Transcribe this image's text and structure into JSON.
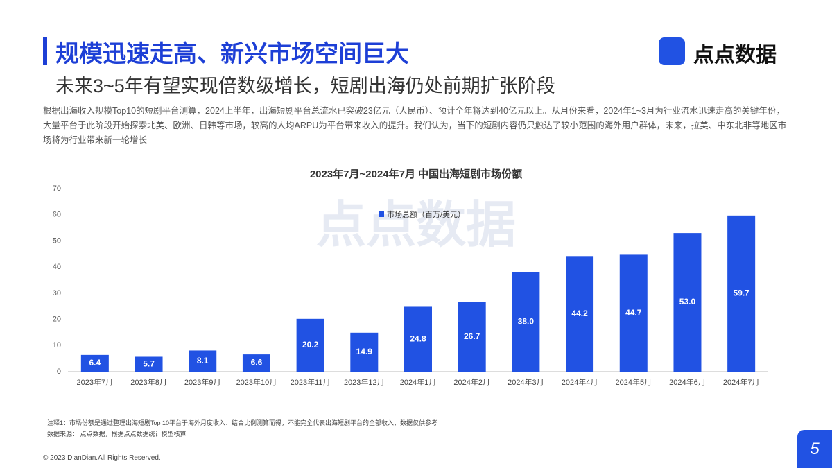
{
  "header": {
    "title": "规模迅速走高、新兴市场空间巨大",
    "subtitle": "未来3~5年有望实现倍数级增长，短剧出海仍处前期扩张阶段",
    "logo": "点点数据"
  },
  "paragraph": "根据出海收入规模Top10的短剧平台测算，2024上半年，出海短剧平台总流水已突破23亿元（人民币）、预计全年将达到40亿元以上。从月份来看，2024年1~3月为行业流水迅速走高的关键年份，大量平台于此阶段开始探索北美、欧洲、日韩等市场，较高的人均ARPU为平台带来收入的提升。我们认为，当下的短剧内容仍只触达了较小范围的海外用户群体，未来，拉美、中东北非等地区市场将为行业带来新一轮增长",
  "chart_data": {
    "type": "bar",
    "title": "2023年7月~2024年7月 中国出海短剧市场份额",
    "watermark": "点点数据",
    "categories": [
      "2023年7月",
      "2023年8月",
      "2023年9月",
      "2023年10月",
      "2023年11月",
      "2023年12月",
      "2024年1月",
      "2024年2月",
      "2024年3月",
      "2024年4月",
      "2024年5月",
      "2024年6月",
      "2024年7月"
    ],
    "series": [
      {
        "name": "市场总额（百万/美元）",
        "color": "#2152e3",
        "values": [
          6.4,
          5.7,
          8.1,
          6.6,
          20.2,
          14.9,
          24.8,
          26.7,
          38,
          44.2,
          44.7,
          53,
          59.7
        ],
        "value_labels": [
          "6.4",
          "5.7",
          "8.1",
          "6.6",
          "20.2",
          "14.9",
          "24.8",
          "26.7",
          "38.0",
          "44.2",
          "44.7",
          "53.0",
          "59.7"
        ]
      }
    ],
    "ylim": [
      0,
      70
    ],
    "yticks": [
      0,
      10,
      20,
      30,
      40,
      50,
      60,
      70
    ],
    "grid": false,
    "legend": "top"
  },
  "notes": [
    "注释1：市场份额是通过整理出海短剧Top 10平台于海外月度收入、结合比例测算而得，不能完全代表出海短剧平台的全部收入，数据仅供参考",
    "数据来源：  点点数据，根据点点数据统计模型核算"
  ],
  "footer": {
    "copyright": "© 2023 DianDian.All Rights Reserved.",
    "page": "5"
  }
}
